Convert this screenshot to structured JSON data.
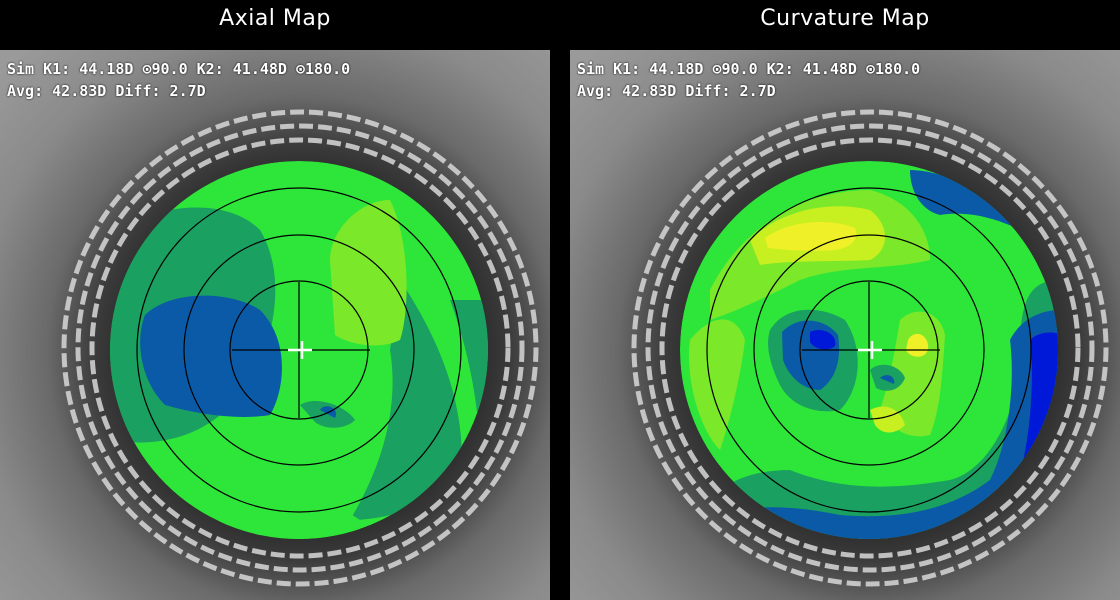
{
  "panels": [
    {
      "title": "Axial Map",
      "readout": {
        "line1": "Sim K1: 44.18D ⊙90.0 K2: 41.48D ⊙180.0",
        "line2": "Avg: 42.83D Diff: 2.7D"
      }
    },
    {
      "title": "Curvature Map",
      "readout": {
        "line1": "Sim K1: 44.18D ⊙90.0 K2: 41.48D ⊙180.0",
        "line2": "Avg: 42.83D Diff: 2.7D"
      }
    }
  ],
  "colors": {
    "flat_deep": "#0018d8",
    "flat": "#0a5aa8",
    "mid_flat": "#1aa060",
    "mid": "#2ee63a",
    "mid_steep": "#7be82a",
    "steep": "#c8f020",
    "steep_max": "#f0f028",
    "grid": "#000000",
    "reticle": "#ffffff"
  }
}
